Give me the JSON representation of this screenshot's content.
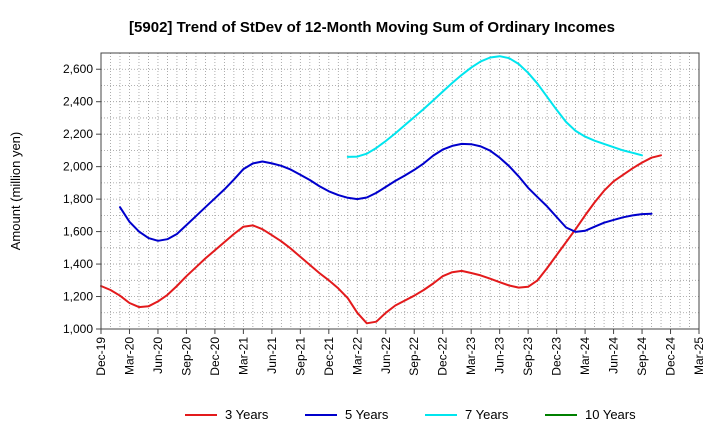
{
  "chart_data": {
    "type": "line",
    "title": "[5902]  Trend of StDev of 12-Month Moving Sum of Ordinary Incomes",
    "ylabel": "Amount (million yen)",
    "xlabel": "",
    "ylim": [
      1000,
      2700
    ],
    "yticks": [
      1000,
      1200,
      1400,
      1600,
      1800,
      2000,
      2200,
      2400,
      2600
    ],
    "ytick_labels": [
      "1,000",
      "1,200",
      "1,400",
      "1,600",
      "1,800",
      "2,000",
      "2,200",
      "2,400",
      "2,600"
    ],
    "x_start": "2019-12",
    "x_end": "2025-03",
    "xtick_labels": [
      "Dec-19",
      "Mar-20",
      "Jun-20",
      "Sep-20",
      "Dec-20",
      "Mar-21",
      "Jun-21",
      "Sep-21",
      "Dec-21",
      "Mar-22",
      "Jun-22",
      "Sep-22",
      "Dec-22",
      "Mar-23",
      "Jun-23",
      "Sep-23",
      "Dec-23",
      "Mar-24",
      "Jun-24",
      "Sep-24",
      "Dec-24",
      "Mar-25"
    ],
    "grid": true,
    "legend_position": "bottom",
    "series": [
      {
        "name": "3 Years",
        "color": "#e31a1c",
        "start": "2019-12",
        "values": [
          1265,
          1240,
          1205,
          1160,
          1135,
          1140,
          1170,
          1210,
          1265,
          1325,
          1380,
          1435,
          1485,
          1535,
          1585,
          1630,
          1638,
          1615,
          1578,
          1540,
          1495,
          1445,
          1395,
          1345,
          1300,
          1250,
          1190,
          1100,
          1035,
          1045,
          1100,
          1145,
          1175,
          1205,
          1240,
          1280,
          1325,
          1350,
          1358,
          1345,
          1330,
          1310,
          1288,
          1268,
          1255,
          1260,
          1300,
          1375,
          1455,
          1535,
          1615,
          1700,
          1780,
          1852,
          1910,
          1950,
          1990,
          2025,
          2055,
          2070
        ]
      },
      {
        "name": "5 Years",
        "color": "#0000cc",
        "start": "2020-02",
        "values": [
          1750,
          1660,
          1600,
          1560,
          1543,
          1553,
          1585,
          1640,
          1695,
          1750,
          1805,
          1860,
          1920,
          1985,
          2020,
          2032,
          2020,
          2005,
          1982,
          1950,
          1918,
          1880,
          1848,
          1825,
          1808,
          1800,
          1810,
          1838,
          1875,
          1912,
          1945,
          1980,
          2020,
          2068,
          2105,
          2128,
          2140,
          2138,
          2125,
          2098,
          2055,
          2003,
          1940,
          1870,
          1812,
          1755,
          1690,
          1625,
          1598,
          1605,
          1630,
          1655,
          1672,
          1688,
          1700,
          1708,
          1710
        ]
      },
      {
        "name": "7 Years",
        "color": "#00e5ee",
        "start": "2022-02",
        "values": [
          2060,
          2062,
          2080,
          2115,
          2158,
          2205,
          2255,
          2305,
          2355,
          2408,
          2462,
          2515,
          2565,
          2610,
          2648,
          2672,
          2680,
          2668,
          2632,
          2578,
          2510,
          2430,
          2350,
          2275,
          2220,
          2185,
          2160,
          2140,
          2120,
          2100,
          2085,
          2070
        ]
      },
      {
        "name": "10 Years",
        "color": "#008000",
        "start": "2024-12",
        "values": []
      }
    ]
  }
}
